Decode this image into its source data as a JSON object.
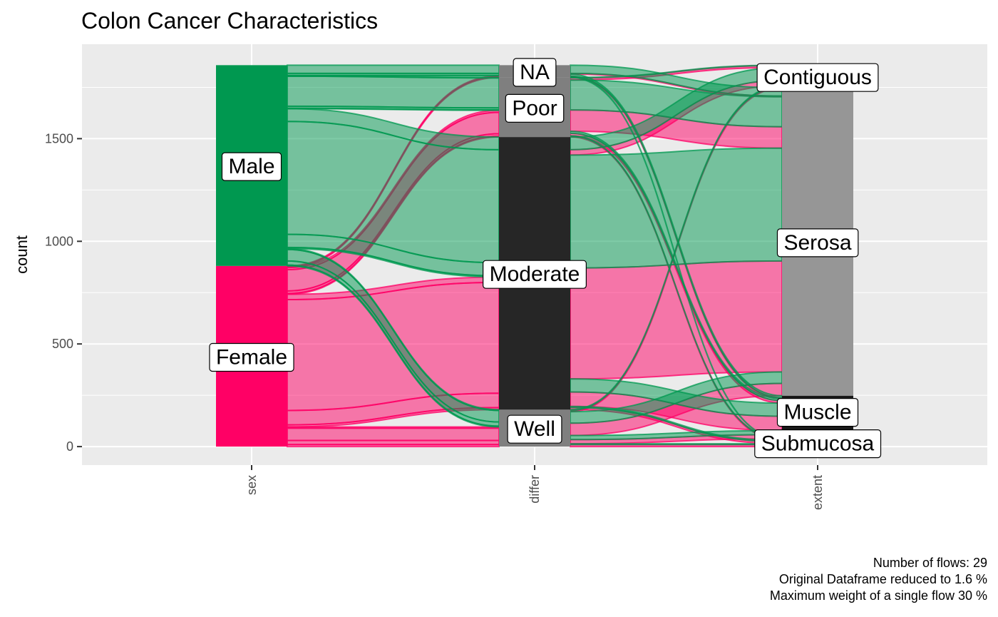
{
  "chart_data": {
    "type": "alluvial",
    "title": "Colon Cancer Characteristics",
    "ylabel": "count",
    "xlabel": "",
    "ylim": [
      -90,
      1960
    ],
    "yticks": [
      0,
      500,
      1000,
      1500
    ],
    "grid": true,
    "axes": [
      "sex",
      "differ",
      "extent"
    ],
    "strata": {
      "sex": [
        {
          "name": "Female",
          "count": 880,
          "color": "#FF0065"
        },
        {
          "name": "Male",
          "count": 978,
          "color": "#009850"
        }
      ],
      "differ": [
        {
          "name": "Well",
          "count": 180,
          "color": "#7F7F7F"
        },
        {
          "name": "Moderate",
          "count": 1328,
          "color": "#262626"
        },
        {
          "name": "Poor",
          "count": 290,
          "color": "#7F7F7F"
        },
        {
          "name": "NA",
          "count": 60,
          "color": "#7F7F7F"
        }
      ],
      "extent": [
        {
          "name": "Submucosa",
          "count": 38,
          "color": "#1A1A1A"
        },
        {
          "name": "Muscle",
          "count": 210,
          "color": "#1A1A1A"
        },
        {
          "name": "Serosa",
          "count": 1500,
          "color": "#969696"
        },
        {
          "name": "Contiguous",
          "count": 110,
          "color": "#BFBFBF"
        }
      ]
    },
    "flows": [
      {
        "sex": "Female",
        "differ": "Well",
        "extent": "Submucosa",
        "count": 10
      },
      {
        "sex": "Female",
        "differ": "Well",
        "extent": "Muscle",
        "count": 20
      },
      {
        "sex": "Female",
        "differ": "Well",
        "extent": "Serosa",
        "count": 60
      },
      {
        "sex": "Female",
        "differ": "Well",
        "extent": "Contiguous",
        "count": 6
      },
      {
        "sex": "Female",
        "differ": "Moderate",
        "extent": "Submucosa",
        "count": 10
      },
      {
        "sex": "Female",
        "differ": "Moderate",
        "extent": "Muscle",
        "count": 70
      },
      {
        "sex": "Female",
        "differ": "Moderate",
        "extent": "Serosa",
        "count": 540
      },
      {
        "sex": "Female",
        "differ": "Moderate",
        "extent": "Contiguous",
        "count": 26
      },
      {
        "sex": "Female",
        "differ": "Poor",
        "extent": "Submucosa",
        "count": 4
      },
      {
        "sex": "Female",
        "differ": "Poor",
        "extent": "Muscle",
        "count": 12
      },
      {
        "sex": "Female",
        "differ": "Poor",
        "extent": "Serosa",
        "count": 104
      },
      {
        "sex": "Female",
        "differ": "Poor",
        "extent": "Contiguous",
        "count": 10
      },
      {
        "sex": "Female",
        "differ": "NA",
        "extent": "Muscle",
        "count": 4
      },
      {
        "sex": "Female",
        "differ": "NA",
        "extent": "Serosa",
        "count": 4
      },
      {
        "sex": "Male",
        "differ": "Well",
        "extent": "Submucosa",
        "count": 4
      },
      {
        "sex": "Male",
        "differ": "Well",
        "extent": "Muscle",
        "count": 20
      },
      {
        "sex": "Male",
        "differ": "Well",
        "extent": "Serosa",
        "count": 56
      },
      {
        "sex": "Male",
        "differ": "Well",
        "extent": "Contiguous",
        "count": 4
      },
      {
        "sex": "Male",
        "differ": "Moderate",
        "extent": "Submucosa",
        "count": 6
      },
      {
        "sex": "Male",
        "differ": "Moderate",
        "extent": "Muscle",
        "count": 64
      },
      {
        "sex": "Male",
        "differ": "Moderate",
        "extent": "Serosa",
        "count": 550
      },
      {
        "sex": "Male",
        "differ": "Moderate",
        "extent": "Contiguous",
        "count": 62
      },
      {
        "sex": "Male",
        "differ": "Poor",
        "extent": "Submucosa",
        "count": 2
      },
      {
        "sex": "Male",
        "differ": "Poor",
        "extent": "Muscle",
        "count": 10
      },
      {
        "sex": "Male",
        "differ": "Poor",
        "extent": "Serosa",
        "count": 146
      },
      {
        "sex": "Male",
        "differ": "Poor",
        "extent": "Contiguous",
        "count": 2
      },
      {
        "sex": "Male",
        "differ": "NA",
        "extent": "Submucosa",
        "count": 2
      },
      {
        "sex": "Male",
        "differ": "NA",
        "extent": "Muscle",
        "count": 10
      },
      {
        "sex": "Male",
        "differ": "NA",
        "extent": "Serosa",
        "count": 40
      }
    ],
    "caption": [
      "Number of flows: 29",
      "Original Dataframe reduced to 1.6 %",
      "Maximum weight of a single flow 30 %"
    ]
  }
}
